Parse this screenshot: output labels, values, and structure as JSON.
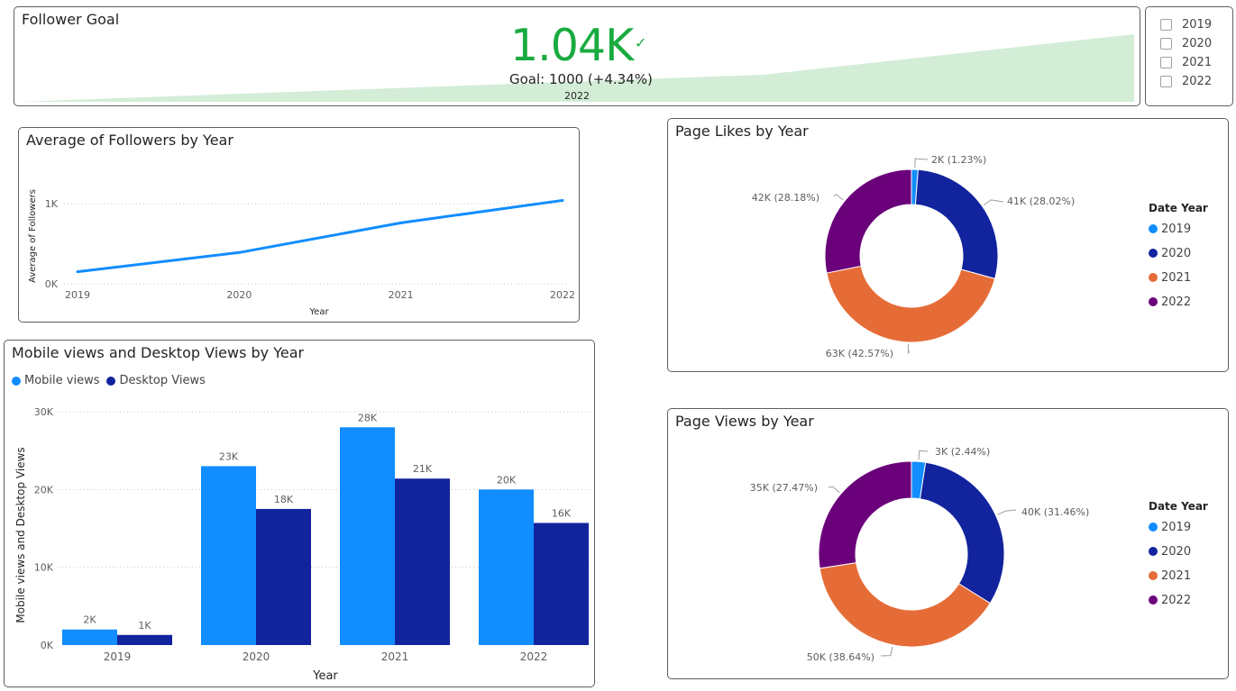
{
  "kpi": {
    "title": "Follower Goal",
    "value": "1.04K",
    "goal_text": "Goal: 1000 (+4.34%)",
    "period": "2022",
    "status_color": "#1aab40",
    "trend_fill": "#d3edd7",
    "trend": [
      0.0,
      0.2,
      0.4,
      1.0
    ]
  },
  "slicer": {
    "items": [
      {
        "label": "2019",
        "checked": false
      },
      {
        "label": "2020",
        "checked": false
      },
      {
        "label": "2021",
        "checked": false
      },
      {
        "label": "2022",
        "checked": false
      }
    ]
  },
  "colors": {
    "2019": "#118dff",
    "2020": "#12239e",
    "2021": "#e66c37",
    "2022": "#6b007b",
    "mobile": "#118dff",
    "desktop": "#12239e"
  },
  "chart_data": [
    {
      "type": "line",
      "title": "Average of Followers by Year",
      "xlabel": "Year",
      "ylabel": "Average of Followers",
      "categories": [
        "2019",
        "2020",
        "2021",
        "2022"
      ],
      "values": [
        150,
        390,
        760,
        1040
      ],
      "ylim": [
        0,
        1000
      ],
      "yticks": [
        "0K",
        "1K"
      ],
      "grid": true,
      "color": "#118dff"
    },
    {
      "type": "bar",
      "title": "Mobile views and Desktop Views by Year",
      "xlabel": "Year",
      "ylabel": "Mobile views and Desktop Views",
      "categories": [
        "2019",
        "2020",
        "2021",
        "2022"
      ],
      "series": [
        {
          "name": "Mobile views",
          "values": [
            2000,
            23000,
            28000,
            20000
          ],
          "labels": [
            "2K",
            "23K",
            "28K",
            "20K"
          ],
          "color": "#118dff"
        },
        {
          "name": "Desktop Views",
          "values": [
            1300,
            17500,
            21400,
            15700
          ],
          "labels": [
            "1K",
            "18K",
            "21K",
            "16K"
          ],
          "color": "#12239e"
        }
      ],
      "ylim": [
        0,
        30000
      ],
      "yticks": [
        "0K",
        "10K",
        "20K",
        "30K"
      ],
      "legend": "top-left",
      "grid": true
    },
    {
      "type": "pie",
      "title": "Page Likes by Year",
      "legend_title": "Date Year",
      "legend": "right",
      "slices": [
        {
          "label": "2019",
          "value": 1.23,
          "data_label": "2K (1.23%)"
        },
        {
          "label": "2020",
          "value": 28.02,
          "data_label": "41K (28.02%)"
        },
        {
          "label": "2021",
          "value": 42.57,
          "data_label": "63K (42.57%)"
        },
        {
          "label": "2022",
          "value": 28.18,
          "data_label": "42K (28.18%)"
        }
      ]
    },
    {
      "type": "pie",
      "title": "Page Views by Year",
      "legend_title": "Date Year",
      "legend": "right",
      "slices": [
        {
          "label": "2019",
          "value": 2.44,
          "data_label": "3K (2.44%)"
        },
        {
          "label": "2020",
          "value": 31.46,
          "data_label": "40K (31.46%)"
        },
        {
          "label": "2021",
          "value": 38.64,
          "data_label": "50K (38.64%)"
        },
        {
          "label": "2022",
          "value": 27.47,
          "data_label": "35K (27.47%)"
        }
      ]
    }
  ]
}
